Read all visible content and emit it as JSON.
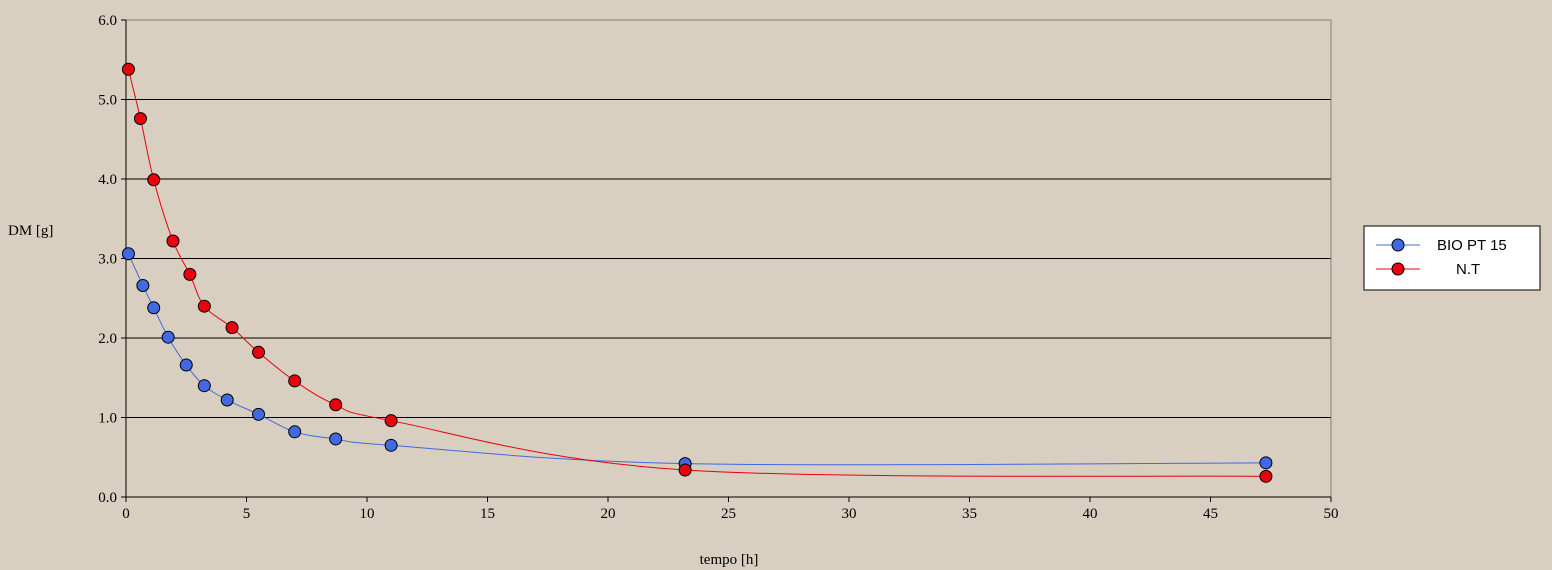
{
  "chart_data": {
    "type": "line",
    "title": "",
    "xlabel": "tempo [h]",
    "ylabel": "DM [g]",
    "xlim": [
      0,
      50
    ],
    "ylim": [
      0,
      6
    ],
    "x_ticks": [
      "0",
      "5",
      "10",
      "15",
      "20",
      "25",
      "30",
      "35",
      "40",
      "45",
      "50"
    ],
    "y_ticks": [
      "0.0",
      "1.0",
      "2.0",
      "3.0",
      "4.0",
      "5.0",
      "6.0"
    ],
    "grid": "horizontal",
    "legend_position": "right",
    "smooth": true,
    "series": [
      {
        "name": "BIO PT 15",
        "color": "#4169e1",
        "marker": "circle",
        "x": [
          0.1,
          0.7,
          1.15,
          1.75,
          2.5,
          3.25,
          4.2,
          5.5,
          7.0,
          8.7,
          11.0,
          23.2,
          47.3
        ],
        "y": [
          3.06,
          2.66,
          2.38,
          2.01,
          1.66,
          1.4,
          1.22,
          1.04,
          0.82,
          0.73,
          0.65,
          0.42,
          0.43
        ]
      },
      {
        "name": "N.T",
        "color": "#e8000d",
        "marker": "circle",
        "x": [
          0.1,
          0.6,
          1.15,
          1.95,
          2.65,
          3.25,
          4.4,
          5.5,
          7.0,
          8.7,
          11.0,
          23.2,
          47.3
        ],
        "y": [
          5.38,
          4.76,
          3.99,
          3.22,
          2.8,
          2.4,
          2.13,
          1.82,
          1.46,
          1.16,
          0.96,
          0.34,
          0.26
        ]
      }
    ]
  }
}
